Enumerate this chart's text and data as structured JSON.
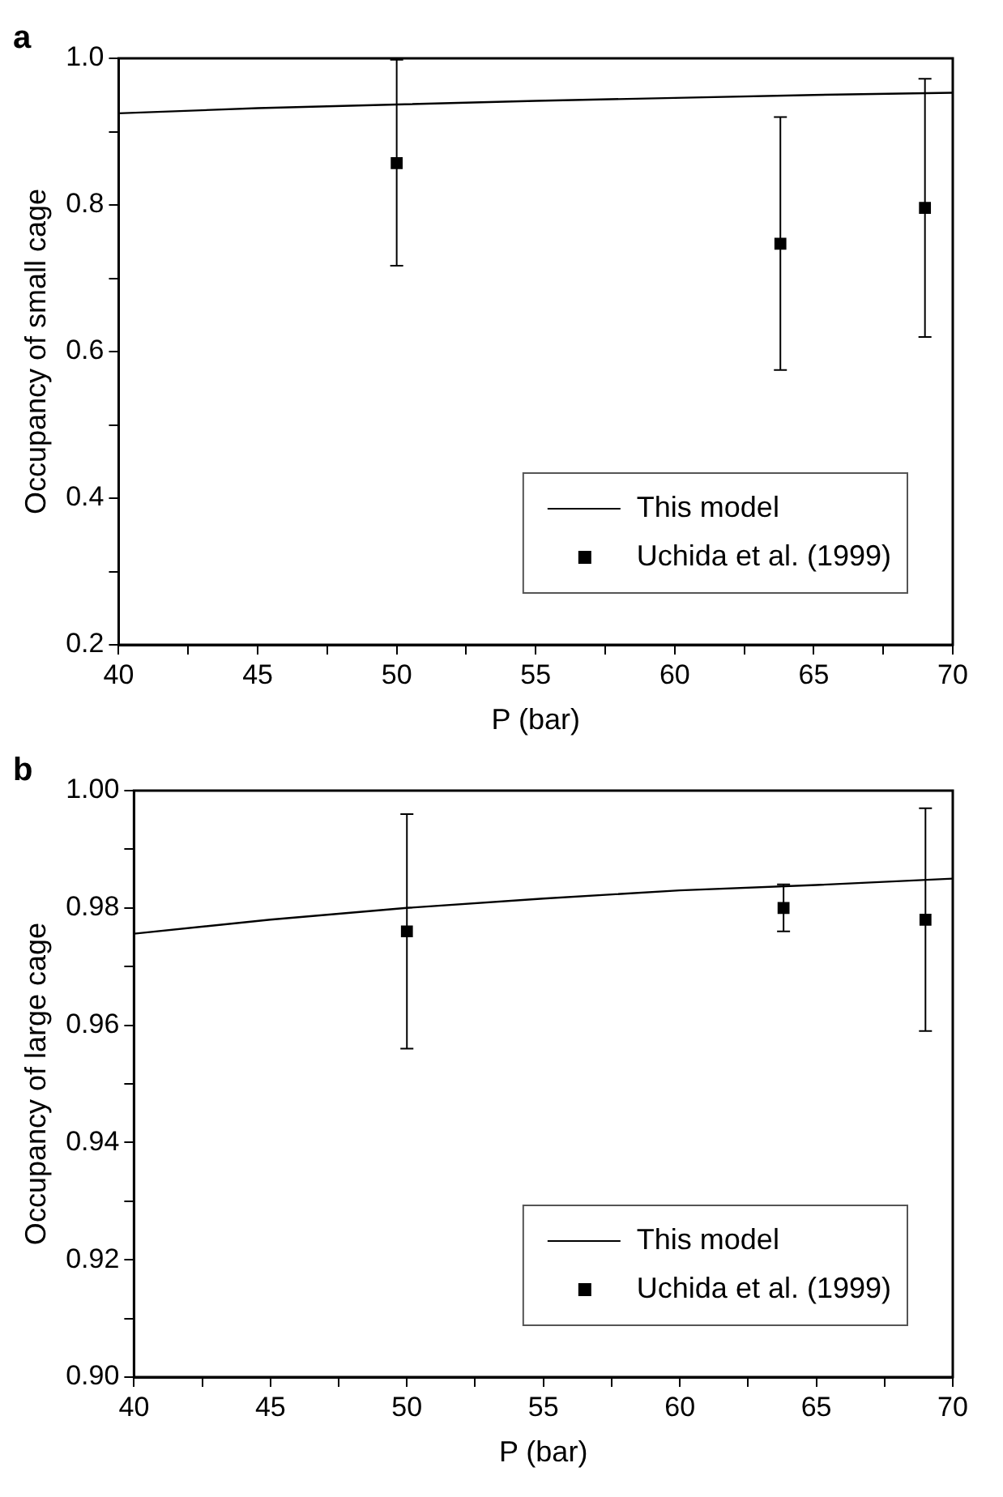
{
  "chart_data": [
    {
      "type": "scatter",
      "title": "a",
      "xlabel": "P (bar)",
      "ylabel": "Occupancy of small cage",
      "xlim": [
        40,
        70
      ],
      "xticks": [
        40,
        {
          "value": 42.5,
          "label": null
        },
        45,
        {
          "value": 47.5,
          "label": null
        },
        50,
        {
          "value": 52.5,
          "label": null
        },
        55,
        {
          "value": 57.5,
          "label": null
        },
        60,
        {
          "value": 62.5,
          "label": null
        },
        65,
        {
          "value": 67.5,
          "label": null
        },
        70
      ],
      "ylim": [
        0.2,
        1.0
      ],
      "yticks": [
        0.2,
        {
          "value": 0.3,
          "label": null
        },
        0.4,
        {
          "value": 0.5,
          "label": null
        },
        0.6,
        {
          "value": 0.7,
          "label": null
        },
        0.8,
        {
          "value": 0.9,
          "label": null
        },
        {
          "value": 1.0,
          "label": "1.0"
        }
      ],
      "grid": false,
      "legend": "bottom right",
      "series": [
        {
          "name": "This model",
          "type": "line",
          "color": "#000000",
          "marker": "none",
          "x": [
            40,
            45,
            50,
            55,
            60,
            65,
            70
          ],
          "values": [
            0.925,
            0.932,
            0.937,
            0.942,
            0.946,
            0.95,
            0.953
          ]
        },
        {
          "name": "Uchida et al. (1999)",
          "type": "scatter",
          "color": "#000000",
          "marker": "square",
          "x": [
            50,
            63.8,
            69
          ],
          "values": [
            0.857,
            0.747,
            0.796
          ],
          "errors": [
            [
              0.717,
              0.998
            ],
            [
              0.575,
              0.92
            ],
            [
              0.62,
              0.972
            ]
          ]
        }
      ]
    },
    {
      "type": "scatter",
      "title": "b",
      "xlabel": "P (bar)",
      "ylabel": "Occupancy of large cage",
      "xlim": [
        40,
        70
      ],
      "xticks": [
        40,
        {
          "value": 42.5,
          "label": null
        },
        45,
        {
          "value": 47.5,
          "label": null
        },
        50,
        {
          "value": 52.5,
          "label": null
        },
        55,
        {
          "value": 57.5,
          "label": null
        },
        60,
        {
          "value": 62.5,
          "label": null
        },
        65,
        {
          "value": 67.5,
          "label": null
        },
        70
      ],
      "ylim": [
        0.9,
        1.0
      ],
      "yticks": [
        {
          "value": 0.9,
          "label": "0.90"
        },
        {
          "value": 0.91,
          "label": null
        },
        0.92,
        {
          "value": 0.93,
          "label": null
        },
        0.94,
        {
          "value": 0.95,
          "label": null
        },
        0.96,
        {
          "value": 0.97,
          "label": null
        },
        0.98,
        {
          "value": 0.99,
          "label": null
        },
        {
          "value": 1.0,
          "label": "1.00"
        }
      ],
      "grid": false,
      "legend": "bottom right",
      "series": [
        {
          "name": "This model",
          "type": "line",
          "color": "#000000",
          "marker": "none",
          "x": [
            40,
            45,
            50,
            55,
            60,
            65,
            70
          ],
          "values": [
            0.9756,
            0.978,
            0.98,
            0.9816,
            0.983,
            0.9839,
            0.985
          ]
        },
        {
          "name": "Uchida et al. (1999)",
          "type": "scatter",
          "color": "#000000",
          "marker": "square",
          "x": [
            50,
            63.8,
            69
          ],
          "values": [
            0.976,
            0.98,
            0.978
          ],
          "errors": [
            [
              0.956,
              0.996
            ],
            [
              0.976,
              0.984
            ],
            [
              0.959,
              0.997
            ]
          ]
        }
      ]
    }
  ]
}
